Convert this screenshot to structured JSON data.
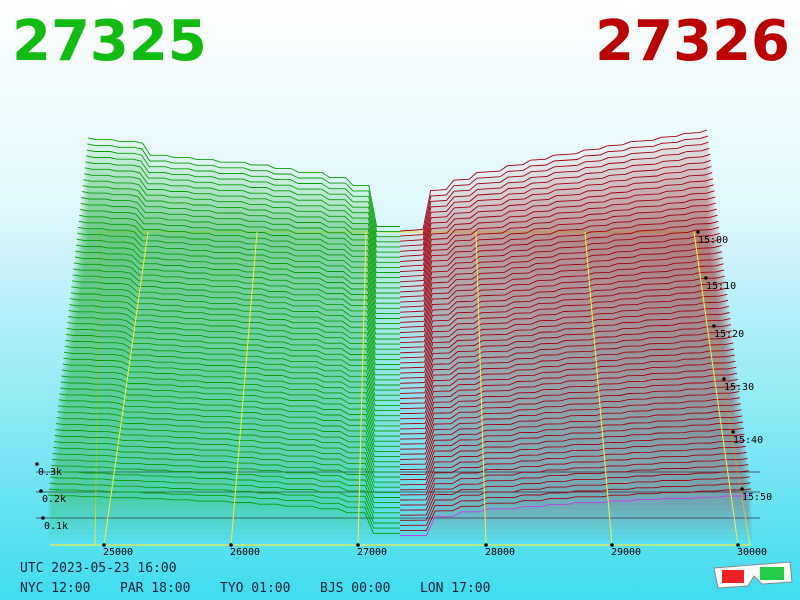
{
  "header": {
    "bid": "27325",
    "ask": "27326"
  },
  "price_axis": {
    "ticks": [
      "25000",
      "26000",
      "27000",
      "28000",
      "29000",
      "30000"
    ]
  },
  "depth_axis": {
    "ticks": [
      "0.1k",
      "0.2k",
      "0.3k"
    ]
  },
  "time_axis": {
    "ticks": [
      "15:00",
      "15:10",
      "15:20",
      "15:30",
      "15:40",
      "15:50"
    ]
  },
  "footer": {
    "utc": "UTC 2023-05-23 16:00",
    "cities": [
      "NYC 12:00",
      "PAR 18:00",
      "TYO 01:00",
      "BJS 00:00",
      "LON 17:00"
    ]
  }
}
